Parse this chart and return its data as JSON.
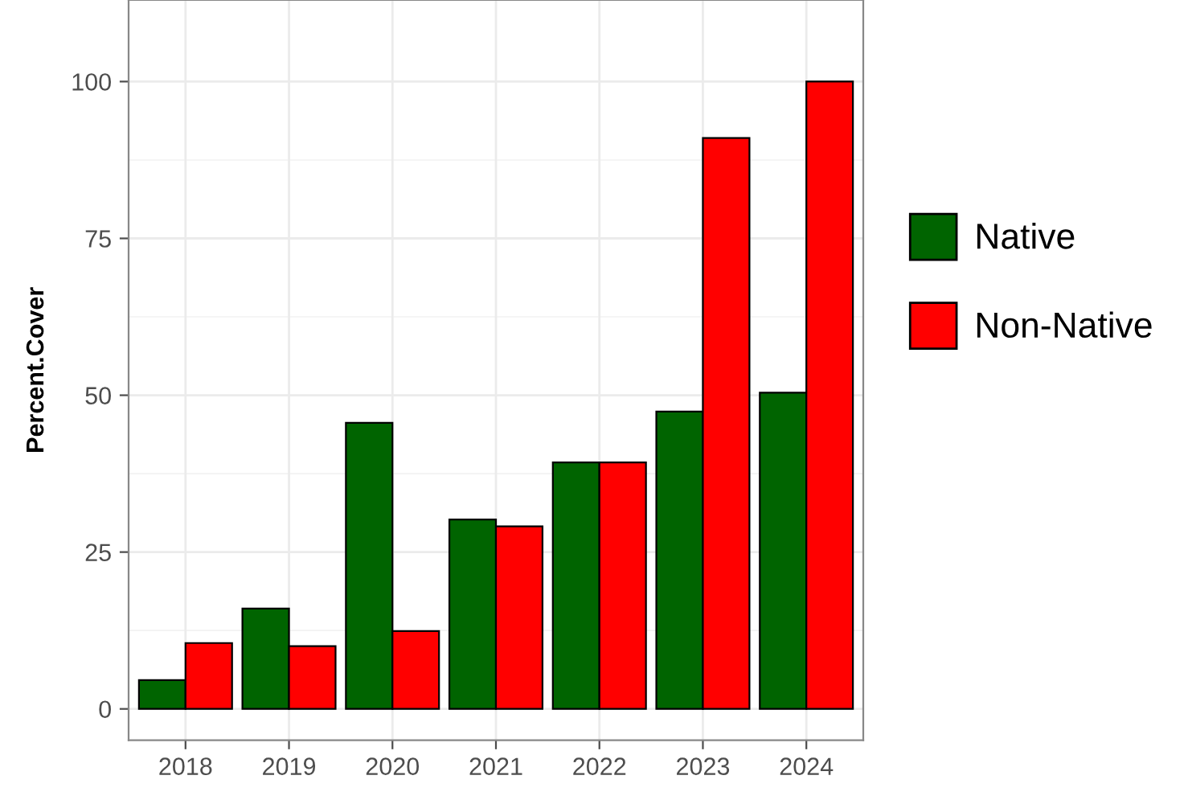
{
  "chart_data": {
    "type": "bar",
    "ylabel": "Percent.Cover",
    "categories": [
      "2018",
      "2019",
      "2020",
      "2021",
      "2022",
      "2023",
      "2024"
    ],
    "series": [
      {
        "name": "Native",
        "color": "#006400",
        "values": [
          4.6,
          16.0,
          45.6,
          30.2,
          39.3,
          47.4,
          50.4
        ]
      },
      {
        "name": "Non-Native",
        "color": "#ff0000",
        "values": [
          10.5,
          10.0,
          12.4,
          29.1,
          39.3,
          91.0,
          100
        ]
      }
    ],
    "ylim": [
      -5,
      113
    ],
    "yticks": [
      0,
      25,
      50,
      75,
      100
    ],
    "grid": true,
    "legend": "right"
  }
}
